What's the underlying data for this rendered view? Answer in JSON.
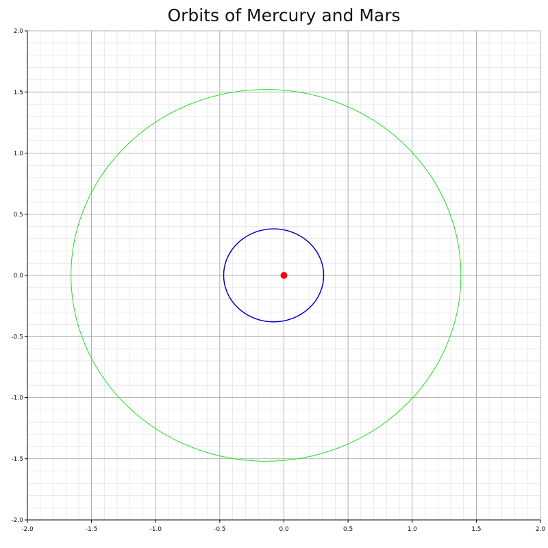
{
  "chart_data": {
    "type": "line",
    "title": "Orbits of Mercury and Mars",
    "xlabel": "",
    "ylabel": "",
    "xlim": [
      -2.0,
      2.0
    ],
    "ylim": [
      -2.0,
      2.0
    ],
    "grid": true,
    "legend": "none",
    "xticks": [
      "-2.0",
      "-1.5",
      "-1.0",
      "-0.5",
      "0.0",
      "0.5",
      "1.0",
      "1.5",
      "2.0"
    ],
    "yticks": [
      "2.0",
      "1.5",
      "1.0",
      "0.5",
      "0.0",
      "-0.5",
      "-1.0",
      "-1.5",
      "-2.0"
    ],
    "series": [
      {
        "color": "#0000cc",
        "shape": "ellipse",
        "center": [
          -0.08,
          0.0
        ],
        "semi_axis_x": 0.39,
        "semi_axis_y": 0.38
      },
      {
        "color": "#22dd22",
        "shape": "ellipse",
        "center": [
          -0.14,
          0.0
        ],
        "semi_axis_x": 1.52,
        "semi_axis_y": 1.52
      }
    ],
    "marker": {
      "color": "#ff0000",
      "x": 0.0,
      "y": 0.0
    }
  }
}
